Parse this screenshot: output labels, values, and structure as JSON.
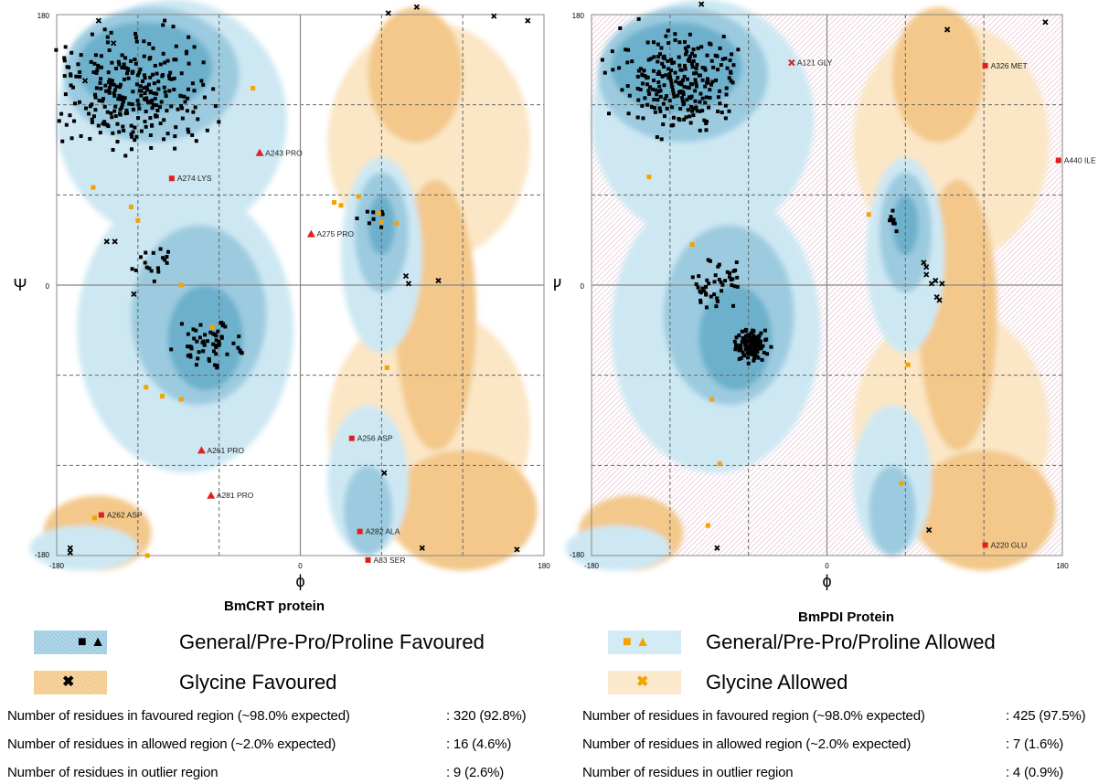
{
  "colors": {
    "general_favoured": "#9ccbe0",
    "general_core": "#6cb0cc",
    "general_allowed": "#cde8f3",
    "glycine_favoured": "#f3c88a",
    "glycine_allowed": "#fbe6c6",
    "outlier_hatch": "#e9c9d5",
    "favoured_marker": "#000000",
    "allowed_marker": "#f4a300",
    "outlier_marker": "#e02020"
  },
  "plots": [
    {
      "caption": "BmCRT protein",
      "axis": {
        "x_symbol": "ϕ",
        "y_symbol": "Ψ",
        "x_ticks": [
          "-180",
          "0",
          "180"
        ],
        "y_ticks": [
          "180",
          "0",
          "-180"
        ]
      },
      "outliers": [
        {
          "label": "A243  PRO",
          "phi": -30,
          "psi": 88,
          "shape": "tri"
        },
        {
          "label": "A274  LYS",
          "phi": -95,
          "psi": 71,
          "shape": "sq"
        },
        {
          "label": "A275  PRO",
          "phi": 8,
          "psi": 34,
          "shape": "tri"
        },
        {
          "label": "A261  PRO",
          "phi": -73,
          "psi": -110,
          "shape": "tri"
        },
        {
          "label": "A281  PRO",
          "phi": -66,
          "psi": -140,
          "shape": "tri"
        },
        {
          "label": "A262  ASP",
          "phi": -147,
          "psi": -153,
          "shape": "sq"
        },
        {
          "label": "A256  ASP",
          "phi": 38,
          "psi": -102,
          "shape": "sq"
        },
        {
          "label": "A282  ALA",
          "phi": 44,
          "psi": -164,
          "shape": "sq"
        },
        {
          "label": "A83  SER",
          "phi": 50,
          "psi": -183,
          "shape": "sq"
        }
      ],
      "allowed": [
        [
          -153,
          65
        ],
        [
          -125,
          52
        ],
        [
          -120,
          43
        ],
        [
          -88,
          0
        ],
        [
          -65,
          -28
        ],
        [
          -114,
          -68
        ],
        [
          -102,
          -74
        ],
        [
          -88,
          -76
        ],
        [
          30,
          53
        ],
        [
          43,
          59
        ],
        [
          58,
          48
        ],
        [
          60,
          42
        ],
        [
          71,
          41
        ],
        [
          64,
          -55
        ],
        [
          -35,
          131
        ],
        [
          -113,
          -180
        ],
        [
          -152,
          -155
        ],
        [
          25,
          55
        ]
      ],
      "gly_marks": [
        [
          -159,
          136
        ],
        [
          -149,
          176
        ],
        [
          65,
          181
        ],
        [
          86,
          185
        ],
        [
          102,
          3
        ],
        [
          80,
          1
        ],
        [
          78,
          6
        ],
        [
          62,
          -125
        ],
        [
          -170,
          -175
        ],
        [
          143,
          179
        ],
        [
          168,
          176
        ],
        [
          -138,
          161
        ],
        [
          -170,
          -178
        ],
        [
          90,
          -175
        ],
        [
          160,
          -176
        ],
        [
          -137,
          29
        ],
        [
          -143,
          29
        ],
        [
          -123,
          -6
        ]
      ],
      "favoured_regions": [
        {
          "phi": -120,
          "psi": 130,
          "rx": 75,
          "ry": 55,
          "n": 280
        },
        {
          "phi": -65,
          "psi": -40,
          "rx": 35,
          "ry": 25,
          "n": 60
        },
        {
          "phi": -110,
          "psi": 15,
          "rx": 35,
          "ry": 20,
          "n": 18
        },
        {
          "phi": 55,
          "psi": 45,
          "rx": 15,
          "ry": 10,
          "n": 8
        }
      ],
      "stats": [
        {
          "label": "Number of residues in favoured region (~98.0% expected)",
          "value": ": 320  (92.8%)"
        },
        {
          "label": "Number of residues in allowed region (~2.0% expected)",
          "value": ": 16  (4.6%)"
        },
        {
          "label": "Number of residues in outlier region",
          "value": ": 9  (2.6%)"
        }
      ]
    },
    {
      "caption": "BmPDI Protein",
      "axis": {
        "x_symbol": "ϕ",
        "y_symbol": "Ψ",
        "x_ticks": [
          "-180",
          "0",
          "180"
        ],
        "y_ticks": [
          "180",
          "0",
          "-180"
        ]
      },
      "outliers": [
        {
          "label": "A121  GLY",
          "phi": -27,
          "psi": 148,
          "shape": "x"
        },
        {
          "label": "A326  MET",
          "phi": 121,
          "psi": 146,
          "shape": "sq"
        },
        {
          "label": "A440  ILE",
          "phi": 177,
          "psi": 83,
          "shape": "sq"
        },
        {
          "label": "A220  GLU",
          "phi": 121,
          "psi": -173,
          "shape": "sq"
        }
      ],
      "allowed": [
        [
          -136,
          72
        ],
        [
          -103,
          27
        ],
        [
          32,
          47
        ],
        [
          -88,
          -76
        ],
        [
          -82,
          -119
        ],
        [
          62,
          -53
        ],
        [
          57,
          -132
        ],
        [
          -91,
          -160
        ],
        [
          -84,
          192
        ]
      ],
      "gly_marks": [
        [
          78,
          -163
        ],
        [
          92,
          170
        ],
        [
          167,
          175
        ],
        [
          -84,
          -175
        ],
        [
          -115,
          196
        ],
        [
          76,
          12
        ],
        [
          76,
          7
        ],
        [
          80,
          1
        ],
        [
          83,
          3
        ],
        [
          84,
          -8
        ],
        [
          88,
          1
        ],
        [
          86,
          -10
        ],
        [
          -96,
          187
        ],
        [
          74,
          15
        ]
      ],
      "favoured_regions": [
        {
          "phi": -115,
          "psi": 135,
          "rx": 65,
          "ry": 45,
          "n": 250
        },
        {
          "phi": -58,
          "psi": -40,
          "rx": 18,
          "ry": 14,
          "n": 120
        },
        {
          "phi": -85,
          "psi": 0,
          "rx": 30,
          "ry": 25,
          "n": 45
        },
        {
          "phi": 52,
          "psi": 45,
          "rx": 10,
          "ry": 15,
          "n": 8
        }
      ],
      "stats": [
        {
          "label": "Number of residues in favoured region (~98.0% expected)",
          "value": ": 425  (97.5%)"
        },
        {
          "label": "Number of residues in allowed region (~2.0% expected)",
          "value": ": 7  (1.6%)"
        },
        {
          "label": "Number of residues in outlier region",
          "value": ": 4  (0.9%)"
        }
      ]
    }
  ],
  "legend": [
    {
      "label": "General/Pre-Pro/Proline Favoured",
      "swatch": "general_favoured",
      "marks": "■  ▲"
    },
    {
      "label": "General/Pre-Pro/Proline Allowed",
      "swatch": "general_allowed",
      "marks": "■  ▲"
    },
    {
      "label": "Glycine Favoured",
      "swatch": "glycine_favoured",
      "marks": "✖"
    },
    {
      "label": "Glycine Allowed",
      "swatch": "glycine_allowed",
      "marks": "✖"
    }
  ],
  "chart_data": [
    {
      "type": "scatter",
      "title": "BmCRT protein",
      "xlabel": "ϕ",
      "ylabel": "Ψ",
      "xlim": [
        -180,
        180
      ],
      "ylim": [
        -180,
        180
      ],
      "grid": true,
      "legend_placement": "bottom",
      "series": [
        {
          "name": "General/Pre-Pro/Proline Favoured",
          "count": 320
        },
        {
          "name": "General/Pre-Pro/Proline Allowed",
          "count": 16
        },
        {
          "name": "outlier",
          "count": 9,
          "points": [
            {
              "label": "A243 PRO",
              "x": -30,
              "y": 88
            },
            {
              "label": "A274 LYS",
              "x": -95,
              "y": 71
            },
            {
              "label": "A275 PRO",
              "x": 8,
              "y": 34
            },
            {
              "label": "A261 PRO",
              "x": -73,
              "y": -110
            },
            {
              "label": "A281 PRO",
              "x": -66,
              "y": -140
            },
            {
              "label": "A262 ASP",
              "x": -147,
              "y": -153
            },
            {
              "label": "A256 ASP",
              "x": 38,
              "y": -102
            },
            {
              "label": "A282 ALA",
              "x": 44,
              "y": -164
            },
            {
              "label": "A83 SER",
              "x": 50,
              "y": -183
            }
          ]
        }
      ]
    },
    {
      "type": "scatter",
      "title": "BmPDI Protein",
      "xlabel": "ϕ",
      "ylabel": "Ψ",
      "xlim": [
        -180,
        180
      ],
      "ylim": [
        -180,
        180
      ],
      "grid": true,
      "legend_placement": "bottom",
      "series": [
        {
          "name": "General/Pre-Pro/Proline Favoured",
          "count": 425
        },
        {
          "name": "General/Pre-Pro/Proline Allowed",
          "count": 7
        },
        {
          "name": "outlier",
          "count": 4,
          "points": [
            {
              "label": "A121 GLY",
              "x": -27,
              "y": 148
            },
            {
              "label": "A326 MET",
              "x": 121,
              "y": 146
            },
            {
              "label": "A440 ILE",
              "x": 177,
              "y": 83
            },
            {
              "label": "A220 GLU",
              "x": 121,
              "y": -173
            }
          ]
        }
      ]
    }
  ]
}
